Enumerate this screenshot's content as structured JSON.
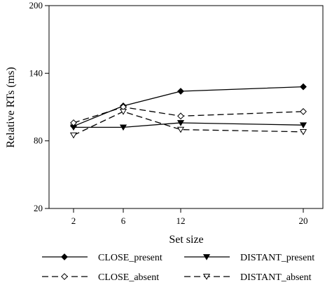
{
  "chart_data": {
    "type": "line",
    "title": "",
    "xlabel": "Set size",
    "ylabel": "Relative RTs (ms)",
    "x": [
      2,
      6,
      12,
      20
    ],
    "x_tick_labels": [
      "2",
      "6",
      "12",
      "20"
    ],
    "ylim": [
      20,
      200
    ],
    "y_ticks": [
      20,
      80,
      140,
      200
    ],
    "y_tick_labels": [
      "20",
      "80",
      "140",
      "200"
    ],
    "grid": false,
    "legend_position": "bottom",
    "series": [
      {
        "name": "CLOSE_present",
        "values": [
          93,
          111,
          124,
          128
        ],
        "line": "solid",
        "marker": "filled-diamond",
        "color": "#000000"
      },
      {
        "name": "DISTANT_present",
        "values": [
          92,
          92,
          96,
          94
        ],
        "line": "solid",
        "marker": "filled-triangle-down",
        "color": "#000000"
      },
      {
        "name": "CLOSE_absent",
        "values": [
          96,
          110,
          102,
          106
        ],
        "line": "dashed",
        "marker": "open-diamond",
        "color": "#000000"
      },
      {
        "name": "DISTANT_absent",
        "values": [
          85,
          106,
          90,
          88
        ],
        "line": "dashed",
        "marker": "open-triangle-down",
        "color": "#000000"
      }
    ]
  }
}
